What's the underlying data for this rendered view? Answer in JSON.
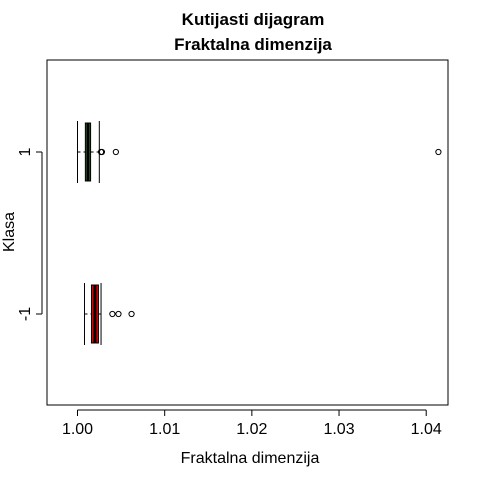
{
  "chart_data": {
    "type": "boxplot",
    "orientation": "horizontal",
    "title": "Kutijasti dijagram",
    "subtitle": "Fraktalna dimenzija",
    "xlabel": "Fraktalna dimenzija",
    "ylabel": "Klasa",
    "xlim": [
      0.9965,
      1.0425
    ],
    "x_ticks": [
      "1.00",
      "1.01",
      "1.02",
      "1.03",
      "1.04"
    ],
    "x_tick_values": [
      1.0,
      1.01,
      1.02,
      1.03,
      1.04
    ],
    "legend": "none",
    "grid": false,
    "categories": [
      "1",
      "-1"
    ],
    "series": [
      {
        "category": "1",
        "color": "#4a7a3a",
        "whisker_low": 1.0,
        "q1": 1.0009,
        "median": 1.0012,
        "q3": 1.0015,
        "whisker_high": 1.0025,
        "outliers": [
          1.0027,
          1.0028,
          1.0044,
          1.0414
        ]
      },
      {
        "category": "-1",
        "color": "#e00000",
        "whisker_low": 1.0008,
        "q1": 1.0016,
        "median": 1.002,
        "q3": 1.0024,
        "whisker_high": 1.0027,
        "outliers": [
          1.004,
          1.0047,
          1.0062
        ]
      }
    ]
  }
}
